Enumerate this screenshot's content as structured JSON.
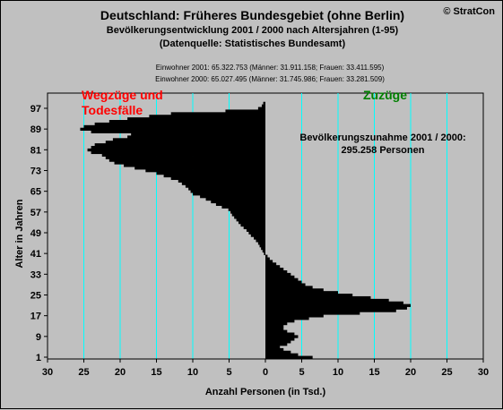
{
  "header": {
    "title": "Deutschland: Früheres Bundesgebiet (ohne Berlin)",
    "subtitle": "Bevölkerungsentwicklung 2001 / 2000  nach Altersjahren (1-95)",
    "source": "(Datenquelle: Statistisches Bundesamt)",
    "copyright": "© StratCon",
    "population_2001": "Einwohner 2001: 65.322.753  (Männer: 31.911.158; Frauen: 33.411.595)",
    "population_2000": "Einwohner 2000: 65.027.495  (Männer: 31.745.986; Frauen: 33.281.509)"
  },
  "colors": {
    "background": "#c0c0c0",
    "grid": "#00ffff",
    "bars": "#000000",
    "loss_label": "#ff0000",
    "gain_label": "#008000"
  },
  "chart_data": {
    "type": "bar",
    "orientation": "horizontal",
    "xlabel": "Anzahl Personen (in Tsd.)",
    "ylabel": "Alter in Jahren",
    "xlim": [
      -30,
      30
    ],
    "ylim": [
      1,
      97
    ],
    "x_ticks": [
      -30,
      -25,
      -20,
      -15,
      -10,
      -5,
      0,
      5,
      10,
      15,
      20,
      25,
      30
    ],
    "x_tick_labels": [
      "30",
      "25",
      "20",
      "15",
      "10",
      "5",
      "0",
      "5",
      "10",
      "15",
      "20",
      "25",
      "30"
    ],
    "y_ticks": [
      1,
      9,
      17,
      25,
      33,
      41,
      49,
      57,
      65,
      73,
      81,
      89,
      97
    ],
    "grid": true,
    "annotations": {
      "loss": "Wegzüge und Todesfälle",
      "gain": "Zuzüge",
      "increase_line1": "Bevölkerungszunahme 2001 / 2000:",
      "increase_line2": "295.258 Personen"
    },
    "ages": [
      1,
      2,
      3,
      4,
      5,
      6,
      7,
      8,
      9,
      10,
      11,
      12,
      13,
      14,
      15,
      16,
      17,
      18,
      19,
      20,
      21,
      22,
      23,
      24,
      25,
      26,
      27,
      28,
      29,
      30,
      31,
      32,
      33,
      34,
      35,
      36,
      37,
      38,
      39,
      40,
      41,
      42,
      43,
      44,
      45,
      46,
      47,
      48,
      49,
      50,
      51,
      52,
      53,
      54,
      55,
      56,
      57,
      58,
      59,
      60,
      61,
      62,
      63,
      64,
      65,
      66,
      67,
      68,
      69,
      70,
      71,
      72,
      73,
      74,
      75,
      76,
      77,
      78,
      79,
      80,
      81,
      82,
      83,
      84,
      85,
      86,
      87,
      88,
      89,
      90,
      91,
      92,
      93,
      94,
      95,
      96,
      97,
      98,
      99
    ],
    "values": [
      6.5,
      4.5,
      3.5,
      2.5,
      2.0,
      3.0,
      3.5,
      4.0,
      4.5,
      4.0,
      3.0,
      2.5,
      2.5,
      3.0,
      4.0,
      6.0,
      8.0,
      13.0,
      18.0,
      19.5,
      20.0,
      19.0,
      17.0,
      14.5,
      12.0,
      10.0,
      8.0,
      6.5,
      5.5,
      5.0,
      4.5,
      4.0,
      3.5,
      3.0,
      2.5,
      2.0,
      1.5,
      1.0,
      0.6,
      0.3,
      -0.2,
      -0.4,
      -0.6,
      -0.8,
      -1.0,
      -1.3,
      -1.6,
      -2.0,
      -2.3,
      -2.6,
      -3.0,
      -3.4,
      -3.7,
      -4.0,
      -4.3,
      -4.6,
      -4.8,
      -5.1,
      -6.0,
      -6.8,
      -7.5,
      -8.2,
      -9.0,
      -10.0,
      -10.3,
      -10.6,
      -11.0,
      -11.5,
      -12.0,
      -13.0,
      -14.0,
      -15.0,
      -16.5,
      -18.0,
      -19.5,
      -20.8,
      -21.5,
      -22.0,
      -22.5,
      -24.0,
      -24.5,
      -24.0,
      -23.5,
      -22.0,
      -21.0,
      -19.0,
      -18.5,
      -24.0,
      -25.5,
      -25.0,
      -23.5,
      -21.5,
      -19.0,
      -16.0,
      -13.0,
      -5.5,
      -1.0,
      -0.5,
      -0.3
    ]
  }
}
